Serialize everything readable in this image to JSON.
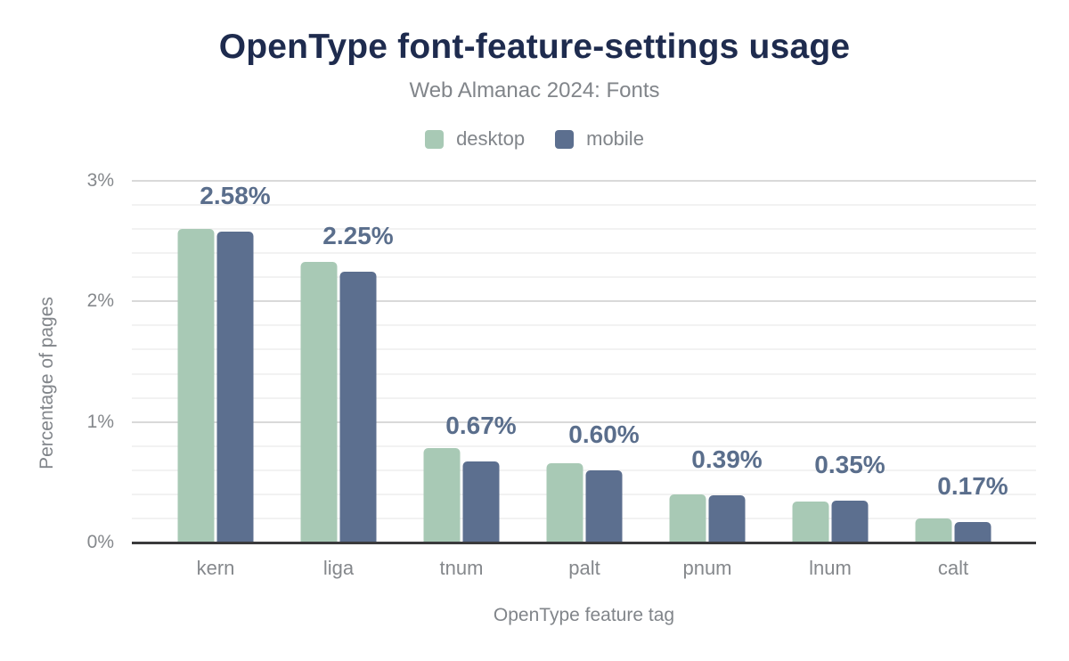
{
  "header": {
    "title": "OpenType font-feature-settings usage",
    "subtitle": "Web Almanac 2024: Fonts"
  },
  "chart_data": {
    "type": "bar",
    "title": "OpenType font-feature-settings usage",
    "subtitle": "Web Almanac 2024: Fonts",
    "categories": [
      "kern",
      "liga",
      "tnum",
      "palt",
      "pnum",
      "lnum",
      "calt"
    ],
    "series": [
      {
        "name": "desktop",
        "color": "#a8c9b5",
        "values": [
          2.6,
          2.33,
          0.78,
          0.66,
          0.4,
          0.34,
          0.2
        ]
      },
      {
        "name": "mobile",
        "color": "#5c6f8f",
        "values": [
          2.58,
          2.25,
          0.67,
          0.6,
          0.39,
          0.35,
          0.17
        ]
      }
    ],
    "annotations": [
      "2.58%",
      "2.25%",
      "0.67%",
      "0.60%",
      "0.39%",
      "0.35%",
      "0.17%"
    ],
    "annotation_color": "#5a6e8c",
    "xlabel": "OpenType feature tag",
    "ylabel": "Percentage of pages",
    "y_ticks": [
      "0%",
      "1%",
      "2%",
      "3%"
    ],
    "ylim": [
      0,
      3
    ],
    "grid": {
      "minor_step": 0.2,
      "major_step": 1.0,
      "legend_position": "top"
    }
  }
}
